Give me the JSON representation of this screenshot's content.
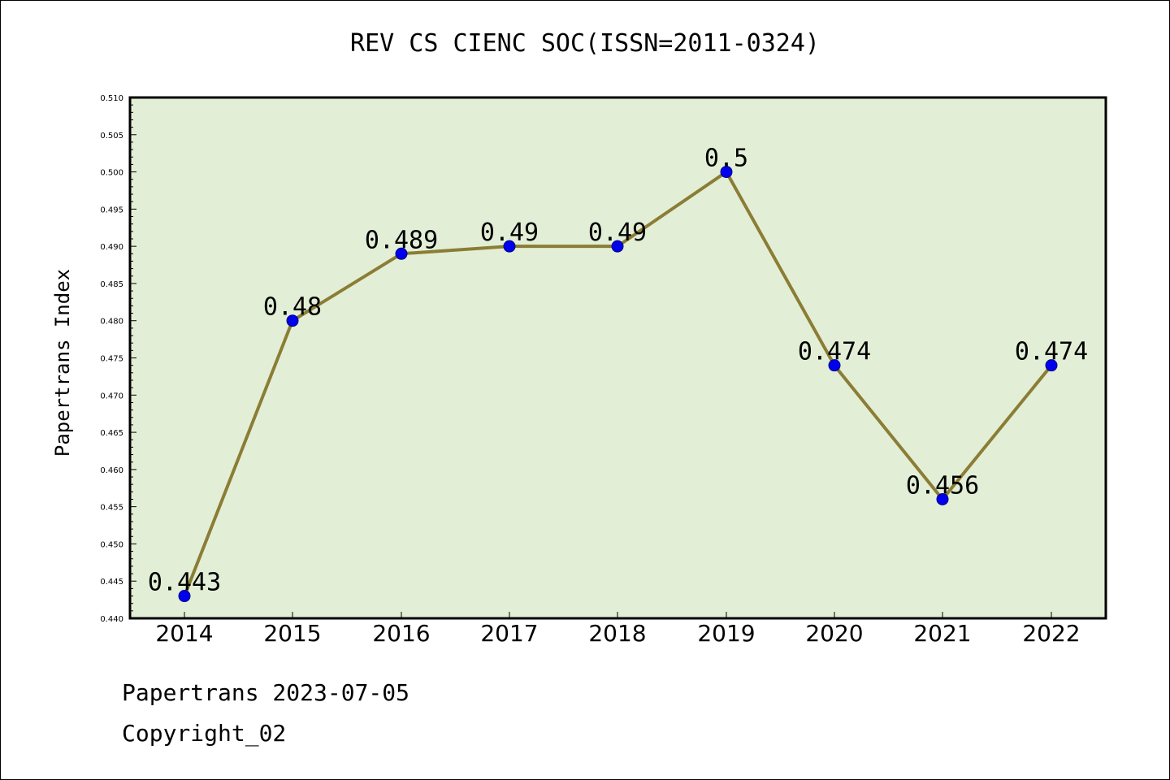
{
  "page": {
    "title": "REV CS CIENC SOC(ISSN=2011-0324)",
    "footer": [
      "Papertrans 2023-07-05",
      "Copyright_02"
    ]
  },
  "chart_data": {
    "type": "line",
    "title": "REV CS CIENC SOC(ISSN=2011-0324)",
    "xlabel": "",
    "ylabel": "Papertrans Index",
    "categories": [
      "2014",
      "2015",
      "2016",
      "2017",
      "2018",
      "2019",
      "2020",
      "2021",
      "2022"
    ],
    "values": [
      0.443,
      0.48,
      0.489,
      0.49,
      0.49,
      0.5,
      0.474,
      0.456,
      0.474
    ],
    "data_labels": [
      "0.443",
      "0.48",
      "0.489",
      "0.49",
      "0.49",
      "0.5",
      "0.474",
      "0.456",
      "0.474"
    ],
    "ylim": [
      0.44,
      0.51
    ],
    "yticks": [
      "0.440",
      "0.445",
      "0.450",
      "0.455",
      "0.460",
      "0.465",
      "0.470",
      "0.475",
      "0.480",
      "0.485",
      "0.490",
      "0.495",
      "0.500",
      "0.505",
      "0.510"
    ],
    "grid": false,
    "colors": {
      "plot_background": "#e2efd6",
      "line": "#8b7d35",
      "marker": "#0000ee",
      "marker_edge": "#000080"
    }
  }
}
